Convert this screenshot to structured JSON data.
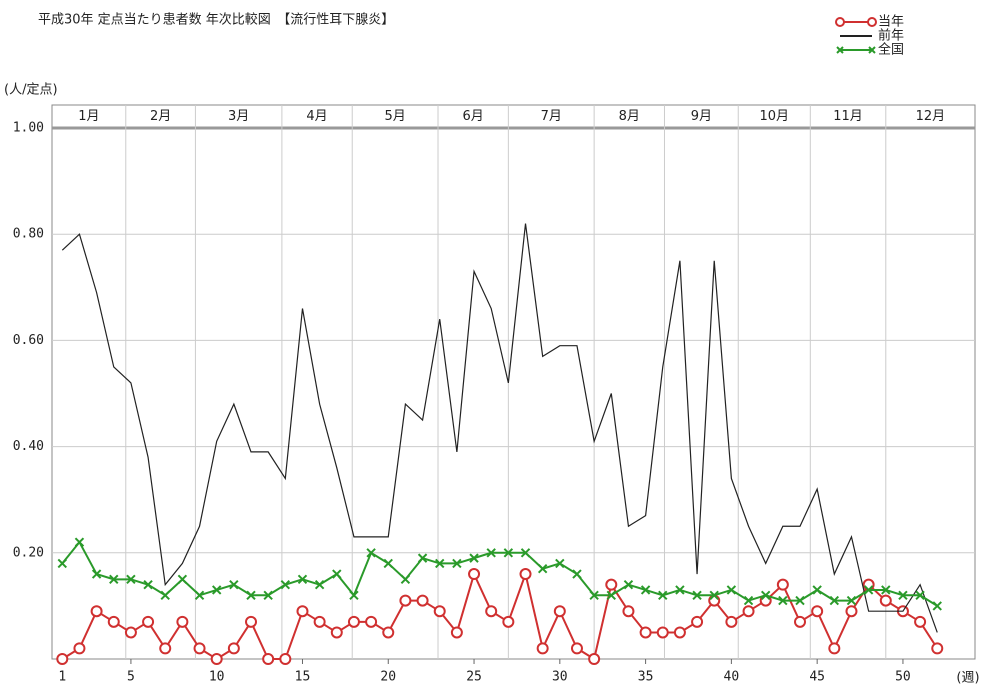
{
  "chart_data": {
    "type": "line",
    "title": "平成30年 定点当たり患者数 年次比較図　【流行性耳下腺炎】",
    "y_label": "(人/定点)",
    "x_label": "(週)",
    "x": [
      1,
      2,
      3,
      4,
      5,
      6,
      7,
      8,
      9,
      10,
      11,
      12,
      13,
      14,
      15,
      16,
      17,
      18,
      19,
      20,
      21,
      22,
      23,
      24,
      25,
      26,
      27,
      28,
      29,
      30,
      31,
      32,
      33,
      34,
      35,
      36,
      37,
      38,
      39,
      40,
      41,
      42,
      43,
      44,
      45,
      46,
      47,
      48,
      49,
      50,
      51,
      52
    ],
    "xlim": [
      0.4,
      54.2
    ],
    "xticks": [
      1,
      5,
      10,
      15,
      20,
      25,
      30,
      35,
      40,
      45,
      50
    ],
    "ylim": [
      0,
      1.0
    ],
    "yticks": [
      {
        "value": 0.2,
        "label": "0.20"
      },
      {
        "value": 0.4,
        "label": "0.40"
      },
      {
        "value": 0.6,
        "label": "0.60"
      },
      {
        "value": 0.8,
        "label": "0.80"
      },
      {
        "value": 1.0,
        "label": "1.00"
      }
    ],
    "grid": true,
    "legend": "top-right",
    "months": [
      {
        "label": "1月",
        "from": 0.4,
        "to": 4.7
      },
      {
        "label": "2月",
        "from": 4.7,
        "to": 8.76
      },
      {
        "label": "3月",
        "from": 8.76,
        "to": 13.8
      },
      {
        "label": "4月",
        "from": 13.8,
        "to": 17.9
      },
      {
        "label": "5月",
        "from": 17.9,
        "to": 22.9
      },
      {
        "label": "6月",
        "from": 22.9,
        "to": 27
      },
      {
        "label": "7月",
        "from": 27,
        "to": 32
      },
      {
        "label": "8月",
        "from": 32,
        "to": 36.1
      },
      {
        "label": "9月",
        "from": 36.1,
        "to": 40.4
      },
      {
        "label": "10月",
        "from": 40.4,
        "to": 44.6
      },
      {
        "label": "11月",
        "from": 44.6,
        "to": 49
      },
      {
        "label": "12月",
        "from": 49,
        "to": 54.2
      }
    ],
    "series": [
      {
        "name": "当年",
        "color": "#d03030",
        "marker": "circle",
        "values": [
          0,
          0.02,
          0.09,
          0.07,
          0.05,
          0.07,
          0.02,
          0.07,
          0.02,
          0,
          0.02,
          0.07,
          0,
          0,
          0.09,
          0.07,
          0.05,
          0.07,
          0.07,
          0.05,
          0.11,
          0.11,
          0.09,
          0.05,
          0.16,
          0.09,
          0.07,
          0.16,
          0.02,
          0.09,
          0.02,
          0,
          0.14,
          0.09,
          0.05,
          0.05,
          0.05,
          0.07,
          0.11,
          0.07,
          0.09,
          0.11,
          0.14,
          0.07,
          0.09,
          0.02,
          0.09,
          0.14,
          0.11,
          0.09,
          0.07,
          0.02
        ]
      },
      {
        "name": "前年",
        "color": "#222222",
        "marker": "none",
        "values": [
          0.77,
          0.8,
          0.69,
          0.55,
          0.52,
          0.38,
          0.14,
          0.18,
          0.25,
          0.41,
          0.48,
          0.39,
          0.39,
          0.34,
          0.66,
          0.48,
          0.36,
          0.23,
          0.23,
          0.23,
          0.48,
          0.45,
          0.64,
          0.39,
          0.73,
          0.66,
          0.52,
          0.82,
          0.57,
          0.59,
          0.59,
          0.41,
          0.5,
          0.25,
          0.27,
          0.55,
          0.75,
          0.16,
          0.75,
          0.34,
          0.25,
          0.18,
          0.25,
          0.25,
          0.32,
          0.16,
          0.23,
          0.09,
          0.09,
          0.09,
          0.14,
          0.05
        ]
      },
      {
        "name": "全国",
        "color": "#2a9a2a",
        "marker": "x",
        "values": [
          0.18,
          0.22,
          0.16,
          0.15,
          0.15,
          0.14,
          0.12,
          0.15,
          0.12,
          0.13,
          0.14,
          0.12,
          0.12,
          0.14,
          0.15,
          0.14,
          0.16,
          0.12,
          0.2,
          0.18,
          0.15,
          0.19,
          0.18,
          0.18,
          0.19,
          0.2,
          0.2,
          0.2,
          0.17,
          0.18,
          0.16,
          0.12,
          0.12,
          0.14,
          0.13,
          0.12,
          0.13,
          0.12,
          0.12,
          0.13,
          0.11,
          0.12,
          0.11,
          0.11,
          0.13,
          0.11,
          0.11,
          0.13,
          0.13,
          0.12,
          0.12,
          0.1
        ]
      }
    ]
  }
}
